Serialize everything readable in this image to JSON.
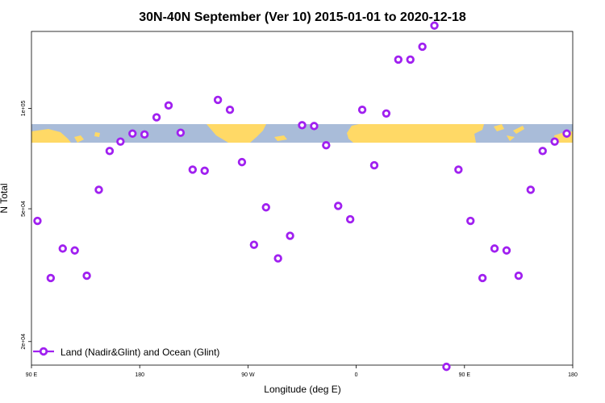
{
  "chart_data": {
    "type": "scatter",
    "title": "30N-40N September (Ver 10)   2015-01-01 to 2020-12-18",
    "xlabel": "Longitude (deg E)",
    "ylabel": "N Total",
    "x_ticks": [
      {
        "value": 90,
        "label": "90 E"
      },
      {
        "value": 180,
        "label": "180"
      },
      {
        "value": 270,
        "label": "90 W"
      },
      {
        "value": 360,
        "label": "0"
      },
      {
        "value": 450,
        "label": "90 E"
      },
      {
        "value": 540,
        "label": "180"
      }
    ],
    "xlim": [
      90,
      540
    ],
    "ylim": [
      17000,
      170000
    ],
    "y_scale": "log",
    "y_ticks": [
      {
        "value": 20000,
        "label": "2e+04"
      },
      {
        "value": 50000,
        "label": "5e+04"
      },
      {
        "value": 100000,
        "label": "1e+05"
      }
    ],
    "legend": {
      "label": "Land (Nadir&Glint) and Ocean (Glint)",
      "position": "bottom-left",
      "color": "#A020F0"
    },
    "series": [
      {
        "name": "Land (Nadir&Glint) and Ocean (Glint)",
        "color": "#A020F0",
        "x": [
          95,
          106,
          116,
          126,
          136,
          146,
          155,
          164,
          174,
          184,
          194,
          204,
          214,
          224,
          234,
          245,
          255,
          265,
          275,
          285,
          295,
          305,
          315,
          325,
          335,
          345,
          355,
          365,
          375,
          385,
          395,
          405,
          415,
          425,
          435,
          445,
          455,
          465,
          475,
          485,
          495,
          505,
          515,
          525,
          535
        ],
        "y": [
          46000,
          31000,
          38000,
          37500,
          31500,
          57000,
          74500,
          79500,
          84000,
          83500,
          94000,
          102000,
          84500,
          65500,
          65000,
          106000,
          99000,
          69000,
          39000,
          50500,
          35500,
          41500,
          89000,
          88500,
          77500,
          51000,
          46500,
          99000,
          67500,
          96500,
          140000,
          140000,
          153000,
          177000,
          16800,
          65500,
          46000,
          31000,
          38000,
          37500,
          31500,
          57000,
          74500,
          79500,
          84000
        ]
      }
    ],
    "background_map": {
      "description": "world map strip",
      "land_color": "#FFD966",
      "ocean_color": "#A9BCD9"
    }
  }
}
